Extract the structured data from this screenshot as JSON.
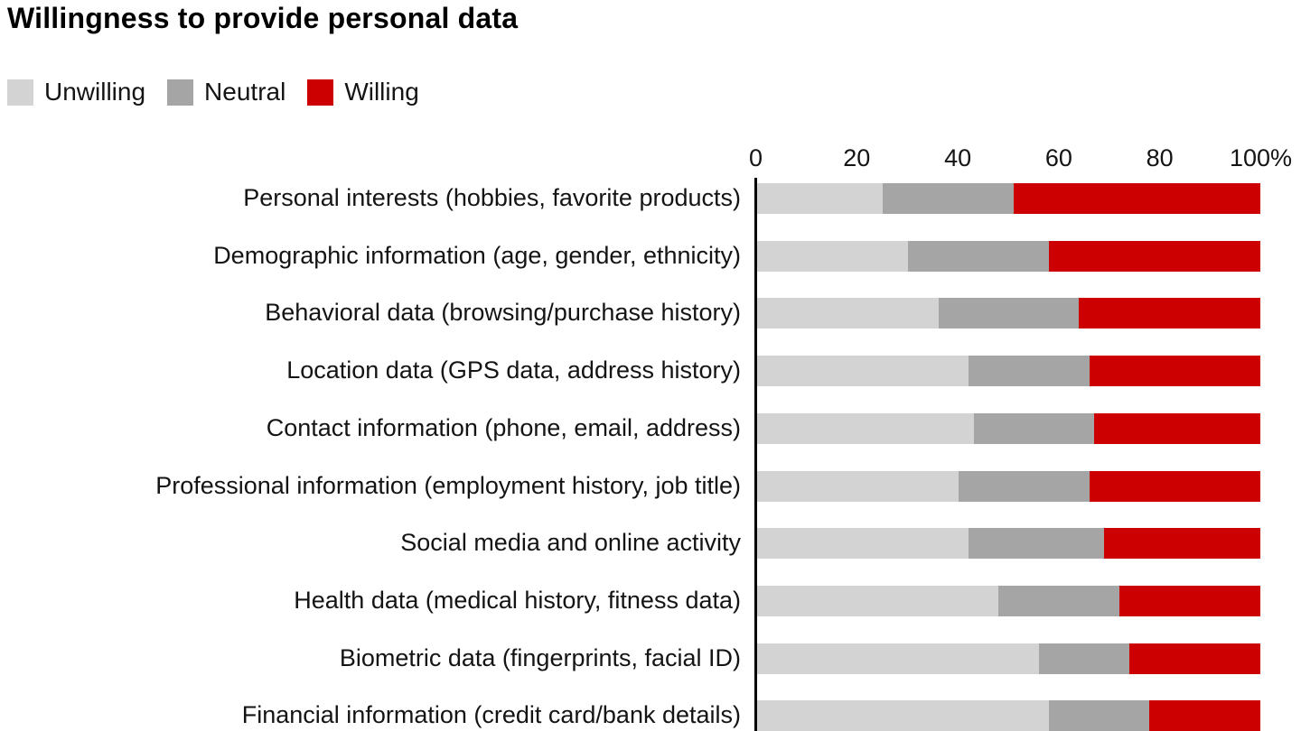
{
  "title": "Willingness to provide personal data",
  "legend": [
    {
      "label": "Unwilling",
      "color": "#d3d3d3"
    },
    {
      "label": "Neutral",
      "color": "#a5a5a5"
    },
    {
      "label": "Willing",
      "color": "#cc0000"
    }
  ],
  "axis": {
    "ticks": [
      {
        "label": "0",
        "value": 0
      },
      {
        "label": "20",
        "value": 20
      },
      {
        "label": "40",
        "value": 40
      },
      {
        "label": "60",
        "value": 60
      },
      {
        "label": "80",
        "value": 80
      },
      {
        "label": "100%",
        "value": 100
      }
    ]
  },
  "chart_data": {
    "type": "bar",
    "stacked": true,
    "orientation": "horizontal",
    "title": "Willingness to provide personal data",
    "xlabel": "",
    "ylabel": "",
    "xlim": [
      0,
      100
    ],
    "x_tick_labels": [
      "0",
      "20",
      "40",
      "60",
      "80",
      "100%"
    ],
    "grid": false,
    "legend_position": "top-left",
    "categories": [
      "Personal interests (hobbies, favorite products)",
      "Demographic information (age, gender, ethnicity)",
      "Behavioral data (browsing/purchase history)",
      "Location data (GPS data, address history)",
      "Contact information (phone, email, address)",
      "Professional information (employment history, job title)",
      "Social media and online activity",
      "Health data (medical history, fitness data)",
      "Biometric data (fingerprints, facial ID)",
      "Financial information (credit card/bank details)"
    ],
    "series": [
      {
        "name": "Unwilling",
        "color": "#d3d3d3",
        "values": [
          25,
          30,
          36,
          42,
          43,
          40,
          42,
          48,
          56,
          58
        ]
      },
      {
        "name": "Neutral",
        "color": "#a5a5a5",
        "values": [
          26,
          28,
          28,
          24,
          24,
          26,
          27,
          24,
          18,
          20
        ]
      },
      {
        "name": "Willing",
        "color": "#cc0000",
        "values": [
          49,
          42,
          36,
          34,
          33,
          34,
          31,
          28,
          26,
          22
        ]
      }
    ]
  }
}
